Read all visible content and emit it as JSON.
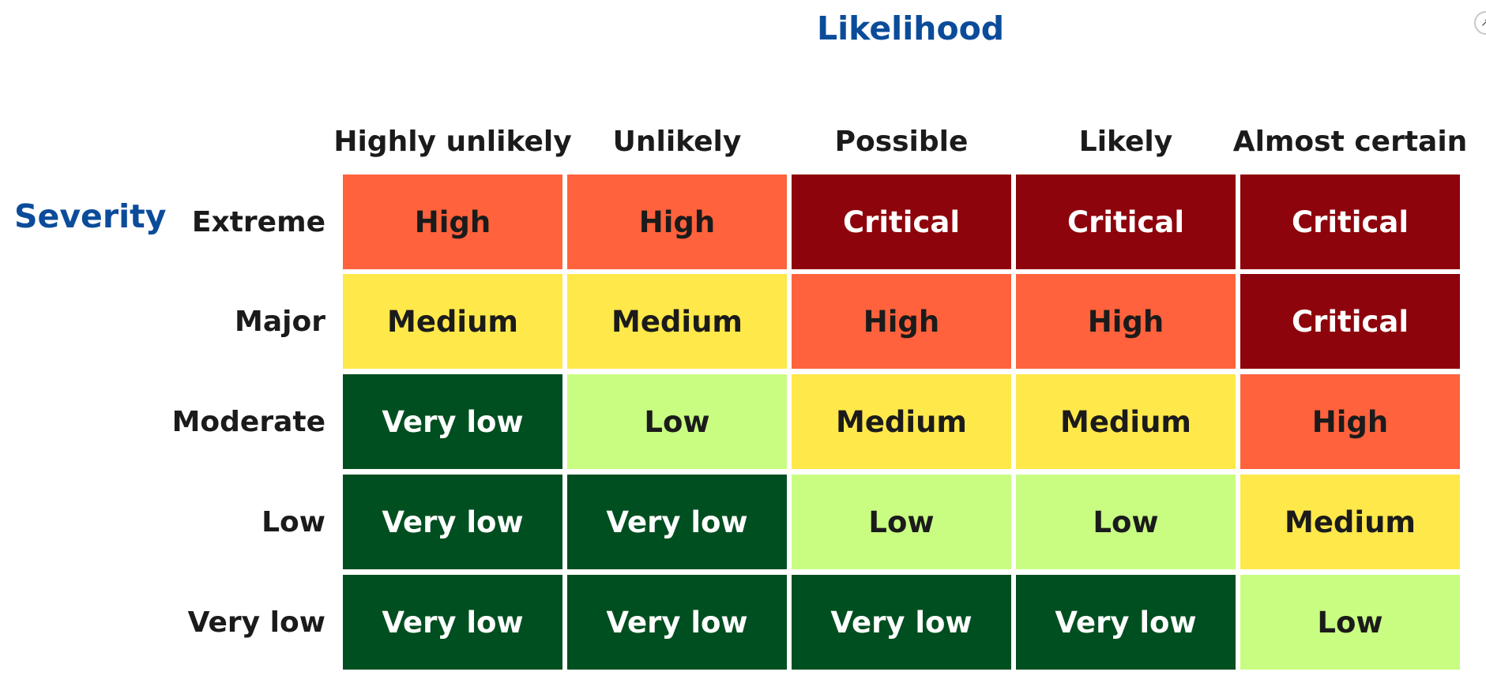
{
  "likelihood_title": "Likelihood",
  "severity_title": "Severity",
  "columns": [
    "Highly unlikely",
    "Unlikely",
    "Possible",
    "Likely",
    "Almost certain"
  ],
  "rows": [
    "Extreme",
    "Major",
    "Moderate",
    "Low",
    "Very low"
  ],
  "matrix": [
    [
      "High",
      "High",
      "Critical",
      "Critical",
      "Critical"
    ],
    [
      "Medium",
      "Medium",
      "High",
      "High",
      "Critical"
    ],
    [
      "Very low",
      "Low",
      "Medium",
      "Medium",
      "High"
    ],
    [
      "Very low",
      "Very low",
      "Low",
      "Low",
      "Medium"
    ],
    [
      "Very low",
      "Very low",
      "Very low",
      "Very low",
      "Low"
    ]
  ],
  "level_colors": {
    "Critical": {
      "bg": "#8e040c",
      "fg": "#ffffff"
    },
    "High": {
      "bg": "#ff623c",
      "fg": "#1b1b1b"
    },
    "Medium": {
      "bg": "#ffe84a",
      "fg": "#1b1b1b"
    },
    "Low": {
      "bg": "#c8fd82",
      "fg": "#1b1b1b"
    },
    "Very low": {
      "bg": "#004f20",
      "fg": "#ffffff"
    }
  },
  "corner_icon": "expand-icon"
}
